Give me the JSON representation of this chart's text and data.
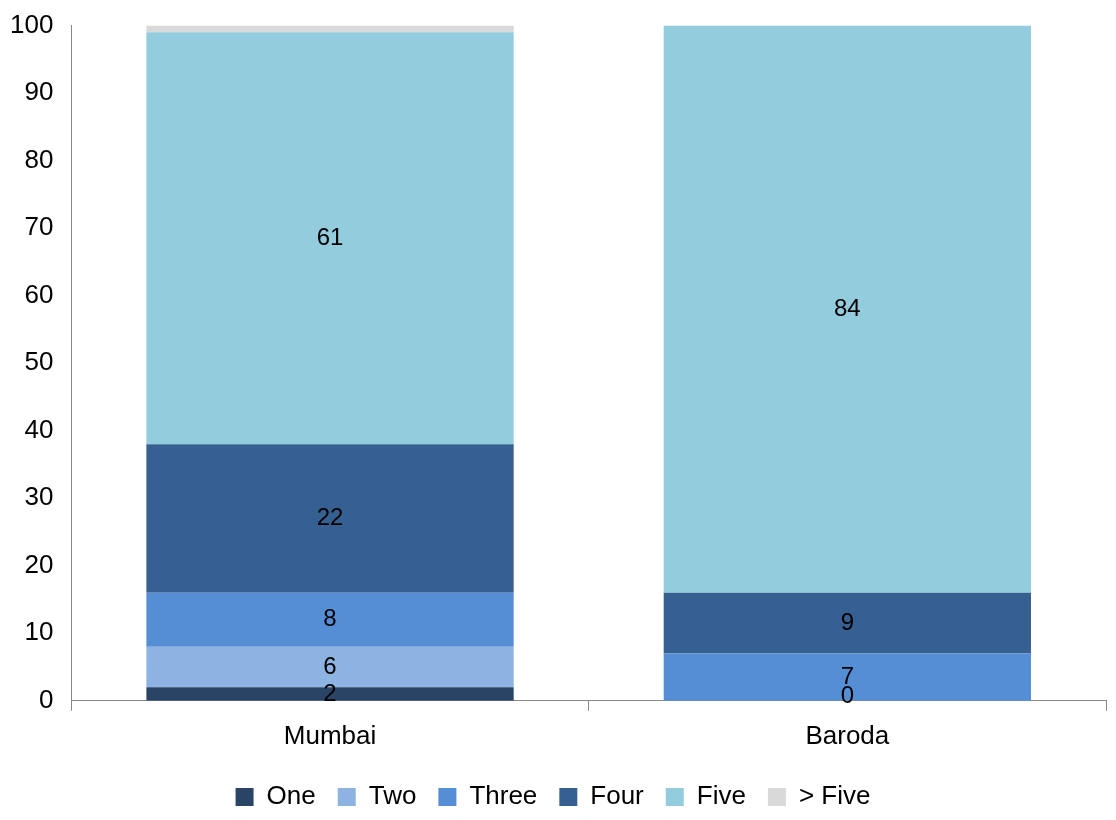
{
  "chart_data": {
    "type": "bar",
    "stacked": true,
    "categories": [
      "Mumbai",
      "Baroda"
    ],
    "series": [
      {
        "name": "One",
        "color": "#2a4466",
        "values": [
          2,
          0
        ],
        "value_labels": [
          "2",
          null
        ]
      },
      {
        "name": "Two",
        "color": "#8db3e2",
        "values": [
          6,
          0
        ],
        "value_labels": [
          "6",
          null
        ]
      },
      {
        "name": "Three",
        "color": "#558ed5",
        "values": [
          8,
          7
        ],
        "value_labels": [
          "8",
          "7"
        ]
      },
      {
        "name": "Four",
        "color": "#376092",
        "values": [
          22,
          9
        ],
        "value_labels": [
          "22",
          "9"
        ]
      },
      {
        "name": "Five",
        "color": "#93cddd",
        "values": [
          61,
          84
        ],
        "value_labels": [
          "61",
          "84"
        ]
      },
      {
        "name": "> Five",
        "color": "#d9d9d9",
        "values": [
          1,
          0
        ],
        "value_labels": [
          null,
          null
        ]
      }
    ],
    "ylim": [
      0,
      100
    ],
    "yticks": [
      0,
      10,
      20,
      30,
      40,
      50,
      60,
      70,
      80,
      90,
      100
    ],
    "grid": false,
    "legend": "bottom",
    "annotations": [
      {
        "text": "0",
        "x": "Baroda",
        "y": 0
      }
    ]
  }
}
